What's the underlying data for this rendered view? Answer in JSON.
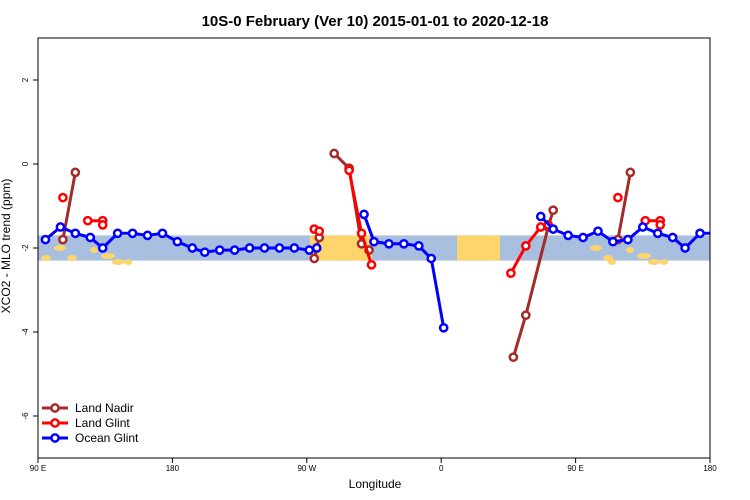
{
  "chart_data": {
    "type": "line",
    "title": "10S-0 February (Ver 10)   2015-01-01 to 2020-12-18",
    "xlabel": "Longitude",
    "ylabel": "XCO2 - MLO trend (ppm)",
    "xlim": [
      -90,
      180
    ],
    "ylim": [
      -7,
      3
    ],
    "x_ticks": [
      -90,
      -36,
      18,
      72,
      126,
      180
    ],
    "x_tick_labels": [
      "90 E",
      "180",
      "90 W",
      "0",
      "90 E",
      "180"
    ],
    "y_ticks": [
      -6,
      -4,
      -2,
      0,
      2
    ],
    "y_tick_labels": [
      "-6",
      "-4",
      "-2",
      "0",
      "2"
    ],
    "legend_position": "bottom-left",
    "series": [
      {
        "name": "Land Nadir",
        "color": "#a52a2a",
        "segments": [
          [
            [
              -80,
              -1.8
            ],
            [
              -75,
              -0.2
            ]
          ],
          [
            [
              21,
              -2.25
            ],
            [
              23,
              -1.75
            ]
          ],
          [
            [
              29,
              0.25
            ],
            [
              35,
              -0.1
            ],
            [
              40,
              -1.9
            ],
            [
              43,
              -2.05
            ]
          ],
          [
            [
              101,
              -4.6
            ],
            [
              106,
              -3.6
            ],
            [
              115,
              -1.5
            ],
            [
              117,
              -1.1
            ]
          ],
          [
            [
              143,
              -1.8
            ],
            [
              148,
              -0.2
            ]
          ]
        ]
      },
      {
        "name": "Land Glint",
        "color": "#ff0000",
        "segments": [
          [
            [
              -80,
              -0.8
            ]
          ],
          [
            [
              -70,
              -1.35
            ],
            [
              -64,
              -1.35
            ],
            [
              -64,
              -1.45
            ]
          ],
          [
            [
              21,
              -1.55
            ],
            [
              23,
              -1.6
            ]
          ],
          [
            [
              35,
              -0.15
            ],
            [
              40,
              -1.65
            ],
            [
              44,
              -2.4
            ]
          ],
          [
            [
              100,
              -2.6
            ],
            [
              106,
              -1.95
            ],
            [
              112,
              -1.5
            ],
            [
              115,
              -1.45
            ]
          ],
          [
            [
              143,
              -0.8
            ]
          ],
          [
            [
              154,
              -1.35
            ],
            [
              160,
              -1.35
            ],
            [
              160,
              -1.45
            ]
          ]
        ]
      },
      {
        "name": "Ocean Glint",
        "color": "#0000ff",
        "segments": [
          [
            [
              -87,
              -1.8
            ],
            [
              -81,
              -1.5
            ],
            [
              -75,
              -1.65
            ],
            [
              -69,
              -1.75
            ],
            [
              -64,
              -2.0
            ],
            [
              -58,
              -1.65
            ],
            [
              -52,
              -1.65
            ],
            [
              -46,
              -1.7
            ],
            [
              -40,
              -1.65
            ],
            [
              -34,
              -1.85
            ],
            [
              -28,
              -2.0
            ],
            [
              -23,
              -2.1
            ],
            [
              -17,
              -2.05
            ],
            [
              -11,
              -2.05
            ],
            [
              -5,
              -2.0
            ],
            [
              1,
              -2.0
            ],
            [
              7,
              -2.0
            ],
            [
              13,
              -2.0
            ],
            [
              19,
              -2.05
            ],
            [
              22,
              -2.0
            ]
          ],
          [
            [
              41,
              -1.2
            ],
            [
              45,
              -1.85
            ],
            [
              51,
              -1.9
            ],
            [
              57,
              -1.9
            ],
            [
              63,
              -1.95
            ],
            [
              68,
              -2.25
            ],
            [
              73,
              -3.9
            ]
          ],
          [
            [
              112,
              -1.25
            ],
            [
              117,
              -1.55
            ],
            [
              123,
              -1.7
            ],
            [
              129,
              -1.75
            ],
            [
              135,
              -1.6
            ],
            [
              141,
              -1.85
            ],
            [
              147,
              -1.8
            ],
            [
              153,
              -1.5
            ],
            [
              159,
              -1.65
            ],
            [
              165,
              -1.75
            ],
            [
              170,
              -2.0
            ],
            [
              176,
              -1.65
            ],
            [
              182,
              -1.65
            ],
            [
              188,
              -1.7
            ],
            [
              194,
              -1.7
            ],
            [
              200,
              -1.65
            ]
          ]
        ]
      }
    ],
    "band": {
      "y_range": [
        -2.3,
        -1.7
      ]
    },
    "colors": {
      "ocean": "#a8bfe0",
      "land": "#fdd56a",
      "frame": "#000000"
    }
  }
}
